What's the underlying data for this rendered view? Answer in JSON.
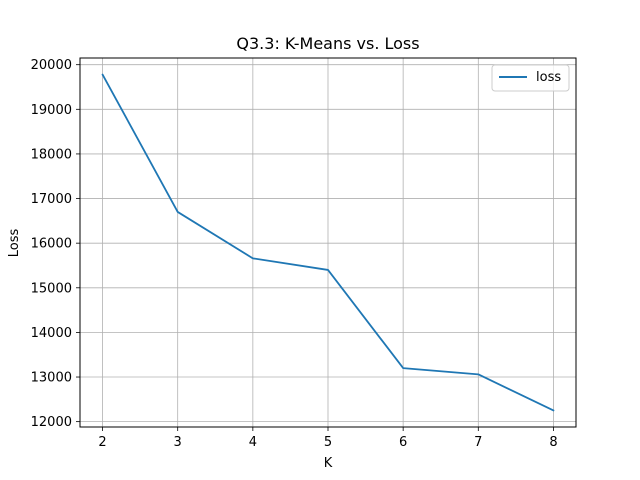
{
  "chart_data": {
    "type": "line",
    "title": "Q3.3: K-Means vs. Loss",
    "xlabel": "K",
    "ylabel": "Loss",
    "x": [
      2,
      3,
      4,
      5,
      6,
      7,
      8
    ],
    "series": [
      {
        "name": "loss",
        "values": [
          19780,
          16700,
          15660,
          15400,
          13200,
          13060,
          12250
        ],
        "color": "#1f77b4"
      }
    ],
    "xlim": [
      1.7,
      8.3
    ],
    "ylim": [
      11880,
      20150
    ],
    "xticks": [
      "2",
      "3",
      "4",
      "5",
      "6",
      "7",
      "8"
    ],
    "yticks": [
      "12000",
      "13000",
      "14000",
      "15000",
      "16000",
      "17000",
      "18000",
      "19000",
      "20000"
    ],
    "grid": true,
    "legend_position": "upper right"
  }
}
